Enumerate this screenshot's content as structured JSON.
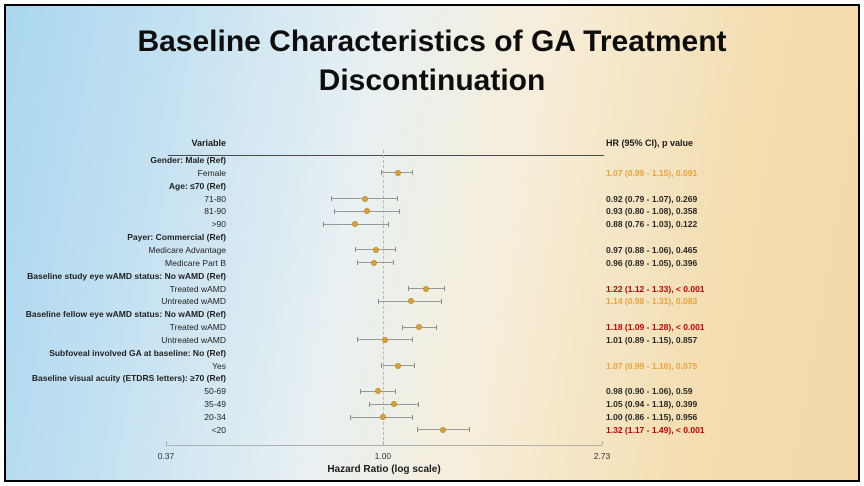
{
  "slide": {
    "title_line1": "Baseline Characteristics of GA Treatment",
    "title_line2": "Discontinuation"
  },
  "chart_data": {
    "type": "scatter",
    "subtype": "forest-plot",
    "title": "Baseline Characteristics of GA Treatment Discontinuation",
    "column_headers": {
      "variable": "Variable",
      "hr": "HR (95% CI), p value"
    },
    "xlabel": "Hazard Ratio (log scale)",
    "x_scale": "log",
    "xlim": [
      0.37,
      2.73
    ],
    "x_ticks": [
      "0.37",
      "1.00",
      "2.73"
    ],
    "x_tick_values": [
      0.37,
      1.0,
      2.73
    ],
    "reference_line": 1.0,
    "legend_position": "none",
    "grid": false,
    "rows": [
      {
        "label": "Gender: Male (Ref)",
        "header": true
      },
      {
        "label": "Female",
        "hr": 1.07,
        "lo": 0.99,
        "hi": 1.15,
        "p": "0.091",
        "text": "1.07 (0.99 - 1.15), 0.091",
        "color": "orange"
      },
      {
        "label": "Age: ≤70 (Ref)",
        "header": true
      },
      {
        "label": "71-80",
        "hr": 0.92,
        "lo": 0.79,
        "hi": 1.07,
        "p": "0.269",
        "text": "0.92 (0.79 - 1.07), 0.269",
        "color": "black"
      },
      {
        "label": "81-90",
        "hr": 0.93,
        "lo": 0.8,
        "hi": 1.08,
        "p": "0.358",
        "text": "0.93 (0.80 - 1.08), 0.358",
        "color": "black"
      },
      {
        "label": ">90",
        "hr": 0.88,
        "lo": 0.76,
        "hi": 1.03,
        "p": "0.122",
        "text": "0.88 (0.76 - 1.03), 0.122",
        "color": "black"
      },
      {
        "label": "Payer: Commercial (Ref)",
        "header": true
      },
      {
        "label": "Medicare Advantage",
        "hr": 0.97,
        "lo": 0.88,
        "hi": 1.06,
        "p": "0.465",
        "text": "0.97 (0.88 - 1.06), 0.465",
        "color": "black"
      },
      {
        "label": "Medicare Part B",
        "hr": 0.96,
        "lo": 0.89,
        "hi": 1.05,
        "p": "0.396",
        "text": "0.96 (0.89 - 1.05), 0.396",
        "color": "black"
      },
      {
        "label": "Baseline study eye wAMD status: No wAMD (Ref)",
        "header": true
      },
      {
        "label": "Treated wAMD",
        "hr": 1.22,
        "lo": 1.12,
        "hi": 1.33,
        "p": "< 0.001",
        "text": "1.22 (1.12 - 1.33), < 0.001",
        "color": "red"
      },
      {
        "label": "Untreated wAMD",
        "hr": 1.14,
        "lo": 0.98,
        "hi": 1.31,
        "p": "0.083",
        "text": "1.14 (0.98 - 1.31), 0.083",
        "color": "orange"
      },
      {
        "label": "Baseline fellow eye wAMD status: No wAMD (Ref)",
        "header": true
      },
      {
        "label": "Treated wAMD",
        "hr": 1.18,
        "lo": 1.09,
        "hi": 1.28,
        "p": "< 0.001",
        "text": "1.18 (1.09 - 1.28), < 0.001",
        "color": "red"
      },
      {
        "label": "Untreated wAMD",
        "hr": 1.01,
        "lo": 0.89,
        "hi": 1.15,
        "p": "0.857",
        "text": "1.01 (0.89 - 1.15), 0.857",
        "color": "black"
      },
      {
        "label": "Subfoveal involved GA at baseline: No (Ref)",
        "header": true
      },
      {
        "label": "Yes",
        "hr": 1.07,
        "lo": 0.99,
        "hi": 1.16,
        "p": "0.075",
        "text": "1.07 (0.99 - 1.16), 0.075",
        "color": "orange"
      },
      {
        "label": "Baseline visual acuity (ETDRS letters): ≥70 (Ref)",
        "header": true
      },
      {
        "label": "50-69",
        "hr": 0.98,
        "lo": 0.9,
        "hi": 1.06,
        "p": "0.59",
        "text": "0.98 (0.90 - 1.06), 0.59",
        "color": "black"
      },
      {
        "label": "35-49",
        "hr": 1.05,
        "lo": 0.94,
        "hi": 1.18,
        "p": "0.399",
        "text": "1.05 (0.94 - 1.18), 0.399",
        "color": "black"
      },
      {
        "label": "20-34",
        "hr": 1.0,
        "lo": 0.86,
        "hi": 1.15,
        "p": "0.956",
        "text": "1.00 (0.86 - 1.15), 0.956",
        "color": "black"
      },
      {
        "label": "<20",
        "hr": 1.32,
        "lo": 1.17,
        "hi": 1.49,
        "p": "< 0.001",
        "text": "1.32 (1.17 - 1.49), < 0.001",
        "color": "red"
      }
    ],
    "colors": {
      "marker": "#d7a33a",
      "ci_line": "#999999",
      "significant_red": "#c00000",
      "trend_orange": "#e8a23c",
      "nonsignificant_black": "#262626"
    }
  }
}
